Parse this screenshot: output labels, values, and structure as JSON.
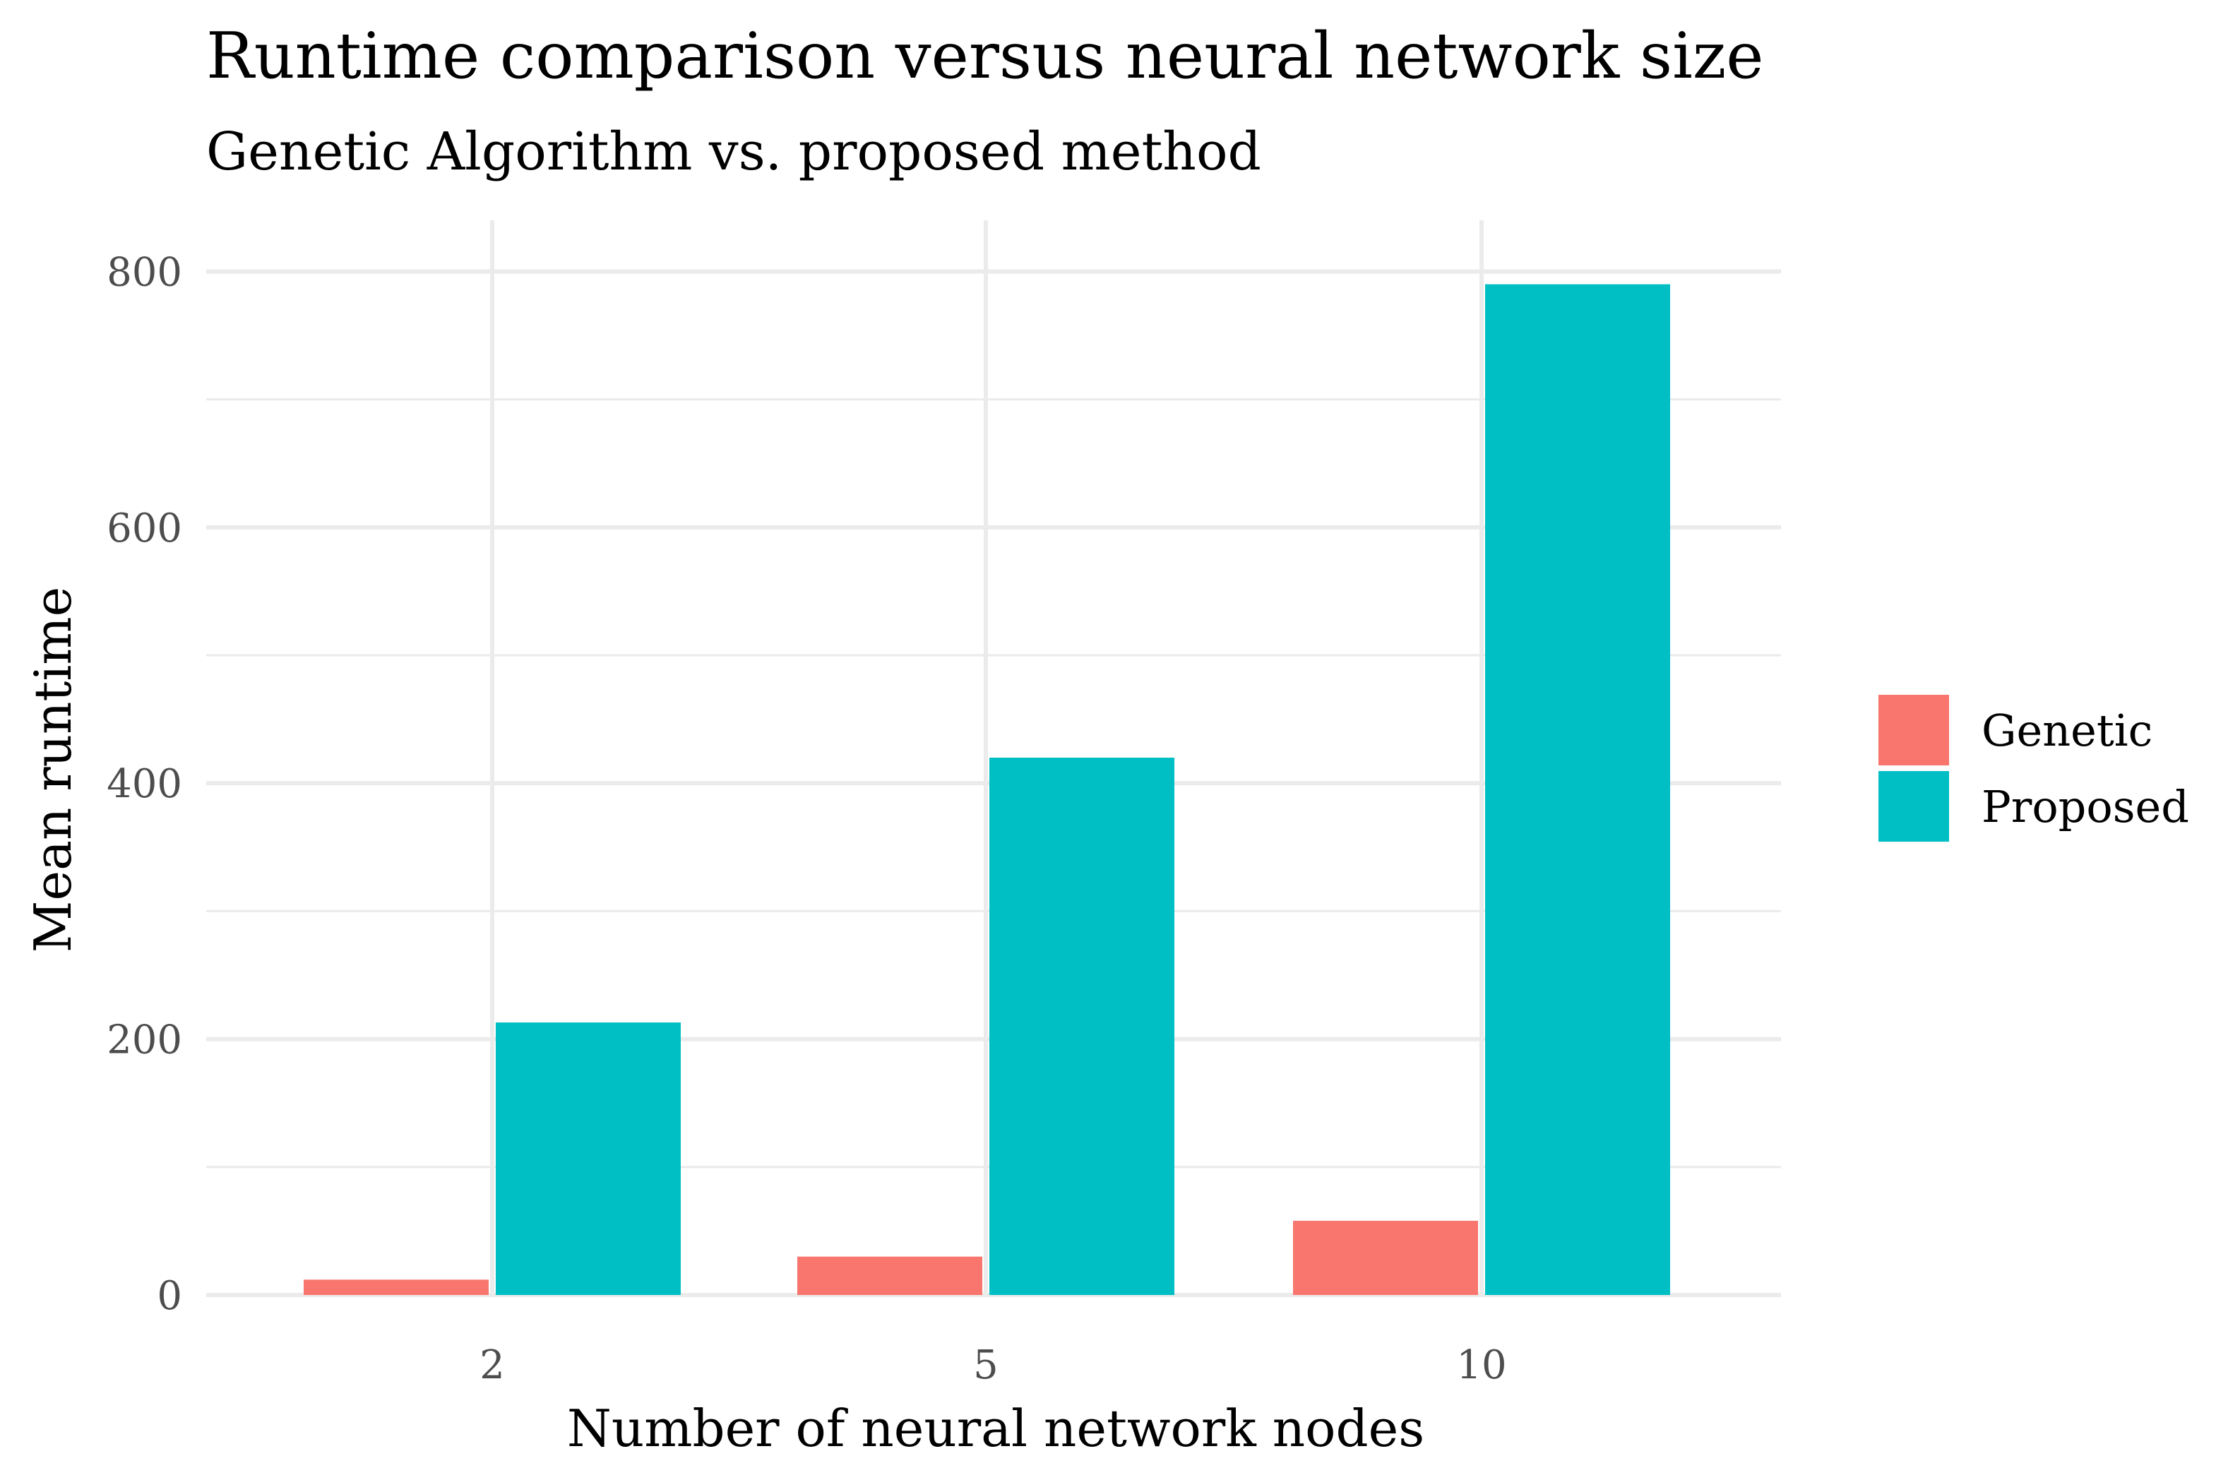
{
  "chart_data": {
    "type": "bar",
    "title": "Runtime comparison versus neural network size",
    "subtitle": "Genetic Algorithm vs. proposed method",
    "xlabel": "Number of neural network nodes",
    "ylabel": "Mean runtime",
    "categories": [
      "2",
      "5",
      "10"
    ],
    "series": [
      {
        "name": "Genetic",
        "values": [
          12,
          30,
          58
        ],
        "color": "#F8766D"
      },
      {
        "name": "Proposed",
        "values": [
          213,
          420,
          790
        ],
        "color": "#00BFC4"
      }
    ],
    "ylim": [
      0,
      840
    ],
    "yticks": [
      0,
      200,
      400,
      600,
      800
    ],
    "y_minor_ticks": [
      100,
      300,
      500,
      700
    ],
    "grid": true,
    "legend_position": "right"
  }
}
